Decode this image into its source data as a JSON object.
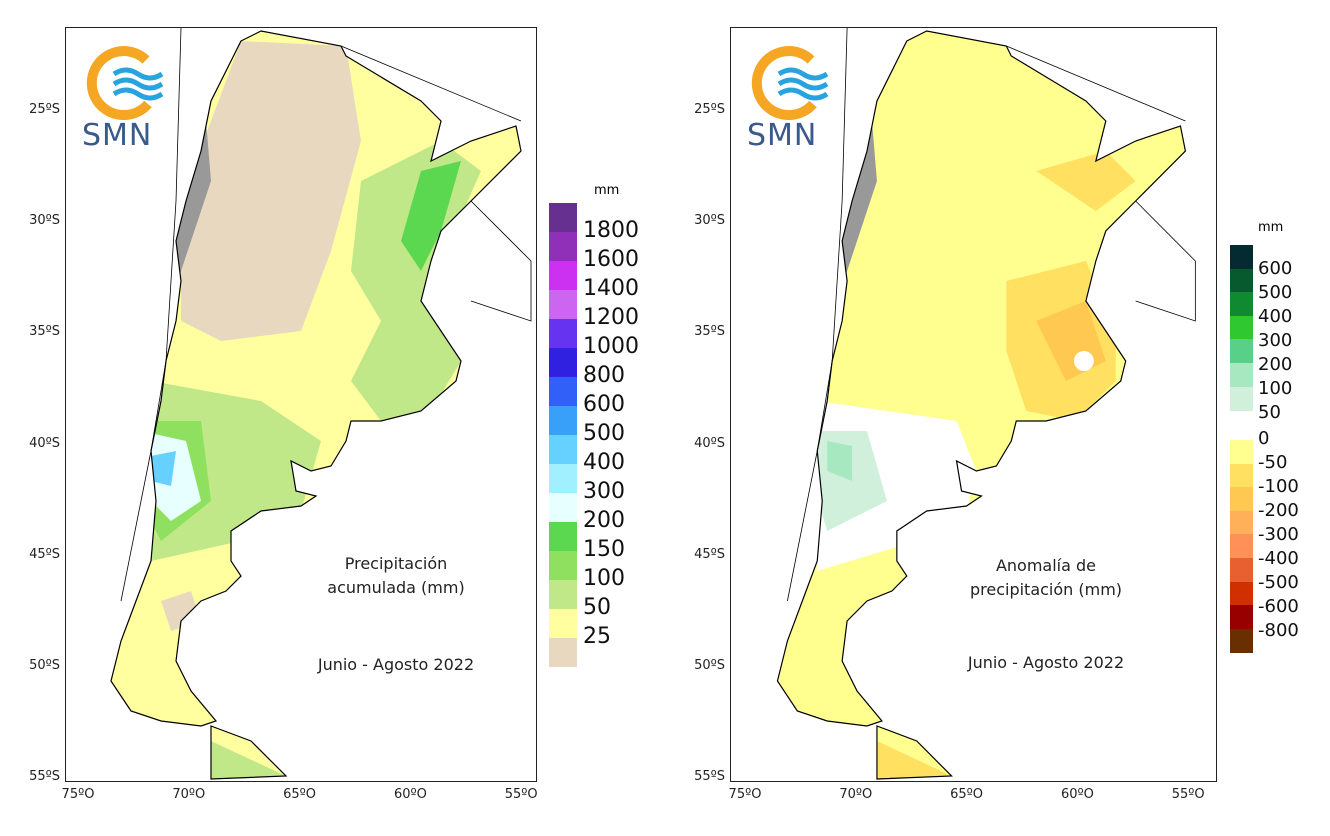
{
  "logo_text": "SMN",
  "lat_ticks": [
    "25ºS",
    "30ºS",
    "35ºS",
    "40ºS",
    "45ºS",
    "50ºS",
    "55ºS"
  ],
  "lon_ticks": [
    "75ºO",
    "70ºO",
    "65ºO",
    "60ºO",
    "55ºO"
  ],
  "left_map": {
    "title_line1": "Precipitación",
    "title_line2": "acumulada (mm)",
    "period": "Junio - Agosto 2022",
    "legend_unit": "mm",
    "legend_labels": [
      "1800",
      "1600",
      "1400",
      "1200",
      "1000",
      "800",
      "600",
      "500",
      "400",
      "300",
      "200",
      "150",
      "100",
      "50",
      "25"
    ],
    "legend_colors": [
      "#653090",
      "#9030b8",
      "#cc30f0",
      "#cc66f0",
      "#6633f0",
      "#3020e0",
      "#3060f8",
      "#38a0f8",
      "#66d0ff",
      "#a0f0ff",
      "#e8ffff",
      "#5cd850",
      "#90e060",
      "#c0e888",
      "#ffffa0",
      "#e8d8c0"
    ]
  },
  "right_map": {
    "title_line1": "Anomalía de",
    "title_line2": "precipitación (mm)",
    "period": "Junio - Agosto 2022",
    "legend_unit": "mm",
    "legend_pos_labels": [
      "600",
      "500",
      "400",
      "300",
      "200",
      "100",
      "50"
    ],
    "legend_neg_labels": [
      "0",
      "-50",
      "-100",
      "-200",
      "-300",
      "-400",
      "-500",
      "-600",
      "-800"
    ],
    "legend_pos_colors": [
      "#062a32",
      "#065a2e",
      "#108a30",
      "#30c830",
      "#58d088",
      "#a8e8c0",
      "#d0f0dc"
    ],
    "legend_neg_colors": [
      "#ffff90",
      "#ffe060",
      "#ffc850",
      "#ffb058",
      "#ff9058",
      "#e86030",
      "#d03000",
      "#980000",
      "#683000"
    ]
  }
}
